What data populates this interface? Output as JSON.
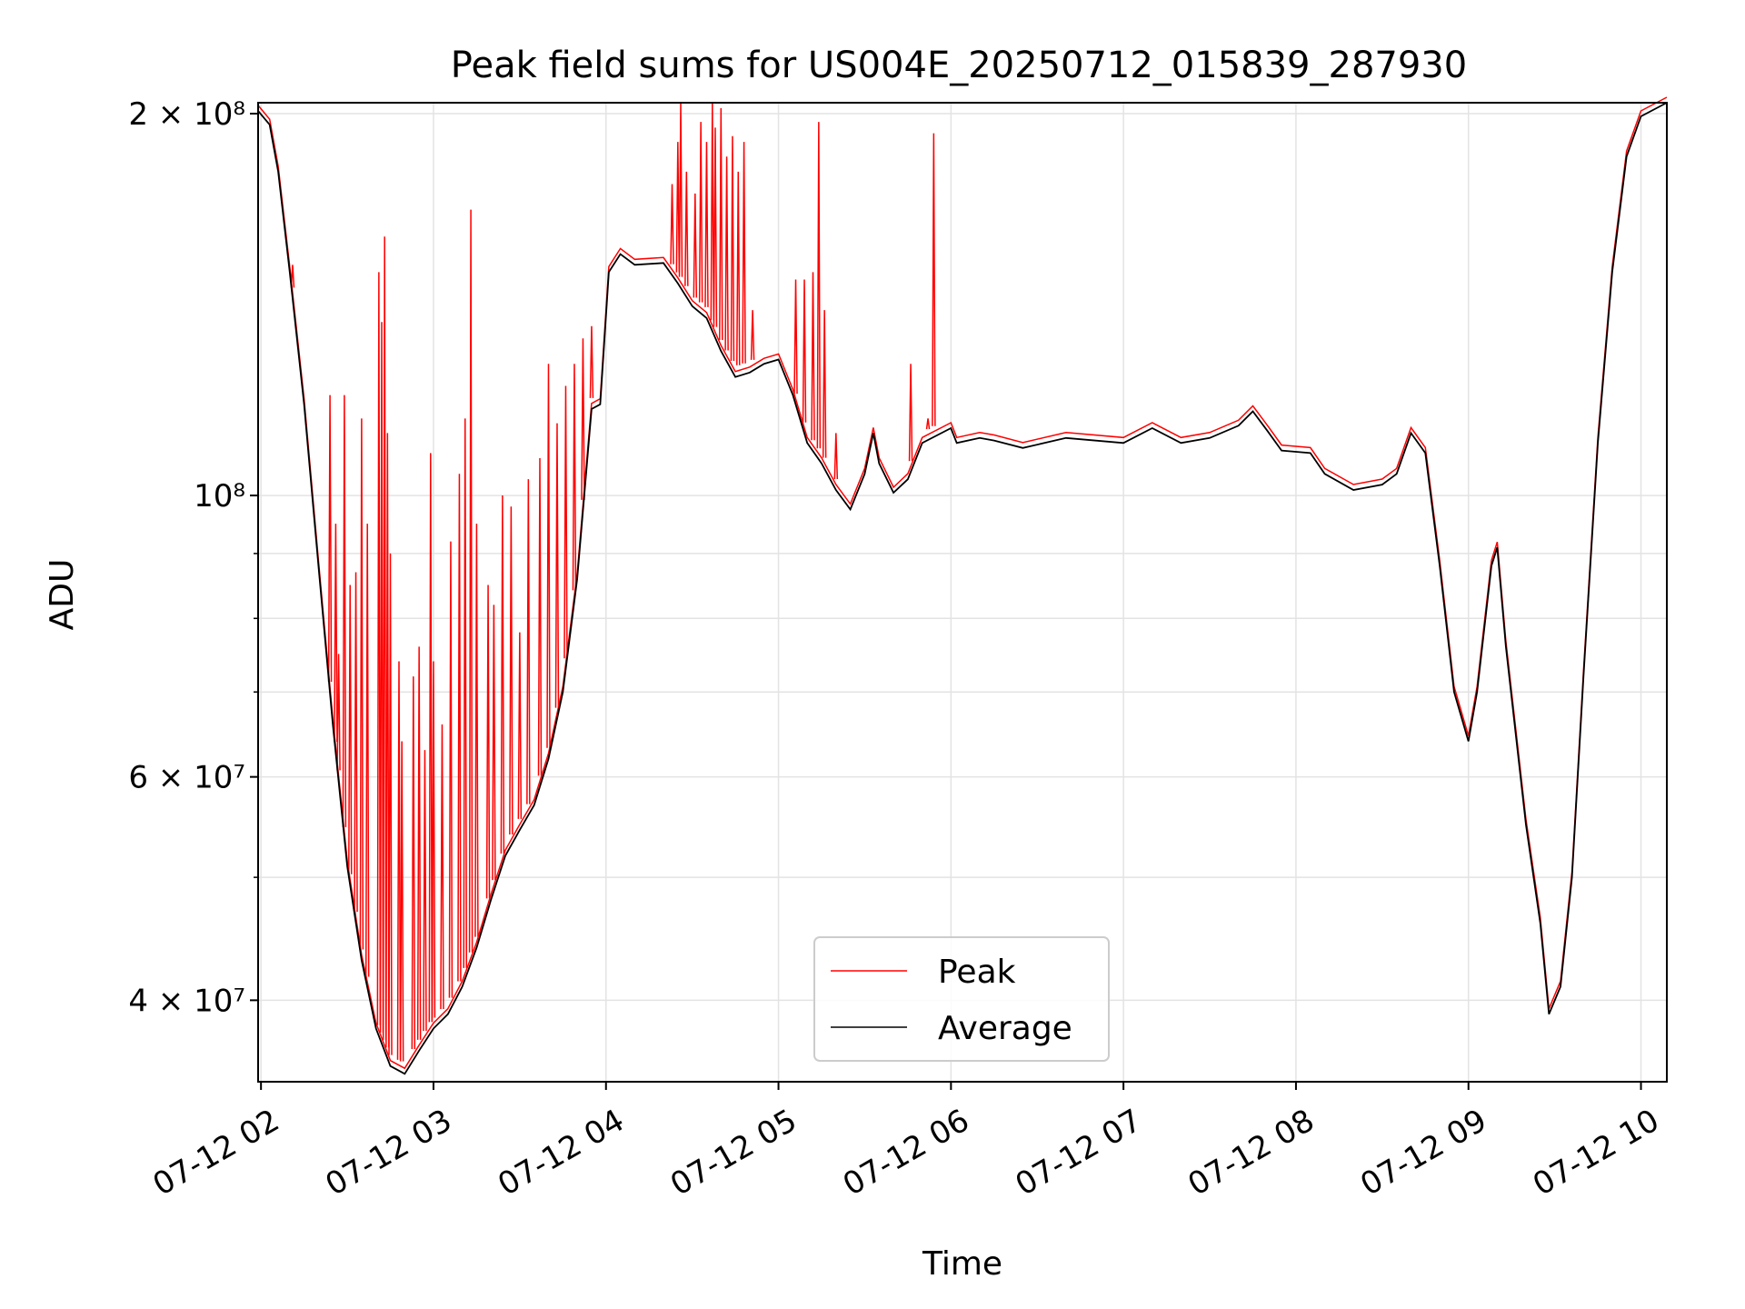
{
  "chart_data": {
    "type": "line",
    "title": "Peak field sums for US004E_20250712_015839_287930",
    "xlabel": "Time",
    "ylabel": "ADU",
    "y_scale": "log",
    "ylim": [
      34500000,
      204000000
    ],
    "xlim": [
      "2025-07-12 01:59",
      "2025-07-12 10:09"
    ],
    "grid": true,
    "legend_position": "lower center",
    "x_ticks": [
      {
        "t": "2025-07-12 02:00",
        "label": "07-12 02"
      },
      {
        "t": "2025-07-12 03:00",
        "label": "07-12 03"
      },
      {
        "t": "2025-07-12 04:00",
        "label": "07-12 04"
      },
      {
        "t": "2025-07-12 05:00",
        "label": "07-12 05"
      },
      {
        "t": "2025-07-12 06:00",
        "label": "07-12 06"
      },
      {
        "t": "2025-07-12 07:00",
        "label": "07-12 07"
      },
      {
        "t": "2025-07-12 08:00",
        "label": "07-12 08"
      },
      {
        "t": "2025-07-12 09:00",
        "label": "07-12 09"
      },
      {
        "t": "2025-07-12 10:00",
        "label": "07-12 10"
      }
    ],
    "y_ticks": [
      {
        "value": 40000000,
        "label": "4 × 10⁷"
      },
      {
        "value": 60000000,
        "label": "6 × 10⁷"
      },
      {
        "value": 100000000,
        "label": "10⁸"
      },
      {
        "value": 200000000,
        "label": "2 × 10⁸"
      }
    ],
    "y_minor_ticks": [
      50000000,
      70000000,
      80000000,
      90000000
    ],
    "series": [
      {
        "name": "Average",
        "color": "#000000",
        "points": [
          [
            "2025-07-12 01:59",
            201000000
          ],
          [
            "2025-07-12 02:03",
            196000000
          ],
          [
            "2025-07-12 02:06",
            180000000
          ],
          [
            "2025-07-12 02:10",
            150000000
          ],
          [
            "2025-07-12 02:15",
            118000000
          ],
          [
            "2025-07-12 02:20",
            88000000
          ],
          [
            "2025-07-12 02:25",
            66000000
          ],
          [
            "2025-07-12 02:30",
            51000000
          ],
          [
            "2025-07-12 02:35",
            43000000
          ],
          [
            "2025-07-12 02:40",
            38000000
          ],
          [
            "2025-07-12 02:45",
            35500000
          ],
          [
            "2025-07-12 02:50",
            35000000
          ],
          [
            "2025-07-12 02:55",
            36500000
          ],
          [
            "2025-07-12 03:00",
            38000000
          ],
          [
            "2025-07-12 03:05",
            39000000
          ],
          [
            "2025-07-12 03:10",
            41000000
          ],
          [
            "2025-07-12 03:15",
            44000000
          ],
          [
            "2025-07-12 03:20",
            48000000
          ],
          [
            "2025-07-12 03:25",
            52000000
          ],
          [
            "2025-07-12 03:30",
            54500000
          ],
          [
            "2025-07-12 03:35",
            57000000
          ],
          [
            "2025-07-12 03:40",
            62000000
          ],
          [
            "2025-07-12 03:45",
            70000000
          ],
          [
            "2025-07-12 03:50",
            86000000
          ],
          [
            "2025-07-12 03:55",
            117000000
          ],
          [
            "2025-07-12 03:58",
            118000000
          ],
          [
            "2025-07-12 04:01",
            150000000
          ],
          [
            "2025-07-12 04:05",
            155000000
          ],
          [
            "2025-07-12 04:10",
            152000000
          ],
          [
            "2025-07-12 04:20",
            152500000
          ],
          [
            "2025-07-12 04:25",
            147000000
          ],
          [
            "2025-07-12 04:30",
            141000000
          ],
          [
            "2025-07-12 04:35",
            138000000
          ],
          [
            "2025-07-12 04:40",
            130000000
          ],
          [
            "2025-07-12 04:45",
            124000000
          ],
          [
            "2025-07-12 04:50",
            125000000
          ],
          [
            "2025-07-12 04:55",
            127000000
          ],
          [
            "2025-07-12 05:00",
            128000000
          ],
          [
            "2025-07-12 05:05",
            120000000
          ],
          [
            "2025-07-12 05:10",
            110000000
          ],
          [
            "2025-07-12 05:15",
            106000000
          ],
          [
            "2025-07-12 05:20",
            101000000
          ],
          [
            "2025-07-12 05:25",
            97500000
          ],
          [
            "2025-07-12 05:30",
            104000000
          ],
          [
            "2025-07-12 05:33",
            112000000
          ],
          [
            "2025-07-12 05:35",
            106000000
          ],
          [
            "2025-07-12 05:40",
            100500000
          ],
          [
            "2025-07-12 05:45",
            103000000
          ],
          [
            "2025-07-12 05:50",
            110000000
          ],
          [
            "2025-07-12 06:00",
            113000000
          ],
          [
            "2025-07-12 06:02",
            110000000
          ],
          [
            "2025-07-12 06:10",
            111000000
          ],
          [
            "2025-07-12 06:15",
            110500000
          ],
          [
            "2025-07-12 06:25",
            109000000
          ],
          [
            "2025-07-12 06:40",
            111000000
          ],
          [
            "2025-07-12 07:00",
            110000000
          ],
          [
            "2025-07-12 07:10",
            113000000
          ],
          [
            "2025-07-12 07:20",
            110000000
          ],
          [
            "2025-07-12 07:30",
            111000000
          ],
          [
            "2025-07-12 07:40",
            113500000
          ],
          [
            "2025-07-12 07:45",
            116500000
          ],
          [
            "2025-07-12 07:50",
            112500000
          ],
          [
            "2025-07-12 07:55",
            108500000
          ],
          [
            "2025-07-12 08:05",
            108000000
          ],
          [
            "2025-07-12 08:10",
            104000000
          ],
          [
            "2025-07-12 08:20",
            101000000
          ],
          [
            "2025-07-12 08:30",
            102000000
          ],
          [
            "2025-07-12 08:35",
            104000000
          ],
          [
            "2025-07-12 08:40",
            112000000
          ],
          [
            "2025-07-12 08:45",
            108000000
          ],
          [
            "2025-07-12 08:50",
            88000000
          ],
          [
            "2025-07-12 08:55",
            70000000
          ],
          [
            "2025-07-12 09:00",
            64000000
          ],
          [
            "2025-07-12 09:03",
            70000000
          ],
          [
            "2025-07-12 09:08",
            88000000
          ],
          [
            "2025-07-12 09:10",
            91000000
          ],
          [
            "2025-07-12 09:13",
            76000000
          ],
          [
            "2025-07-12 09:20",
            55000000
          ],
          [
            "2025-07-12 09:25",
            46000000
          ],
          [
            "2025-07-12 09:28",
            39000000
          ],
          [
            "2025-07-12 09:32",
            41000000
          ],
          [
            "2025-07-12 09:36",
            50000000
          ],
          [
            "2025-07-12 09:40",
            72000000
          ],
          [
            "2025-07-12 09:45",
            110000000
          ],
          [
            "2025-07-12 09:50",
            150000000
          ],
          [
            "2025-07-12 09:55",
            185000000
          ],
          [
            "2025-07-12 10:00",
            199000000
          ],
          [
            "2025-07-12 10:09",
            204000000
          ]
        ]
      },
      {
        "name": "Peak",
        "color": "#ff0000",
        "spikes": [
          [
            "2025-07-12 02:11",
            152000000
          ],
          [
            "2025-07-12 02:24",
            120000000
          ],
          [
            "2025-07-12 02:26",
            95000000
          ],
          [
            "2025-07-12 02:27",
            75000000
          ],
          [
            "2025-07-12 02:29",
            120000000
          ],
          [
            "2025-07-12 02:31",
            85000000
          ],
          [
            "2025-07-12 02:33",
            87000000
          ],
          [
            "2025-07-12 02:35",
            115000000
          ],
          [
            "2025-07-12 02:37",
            95000000
          ],
          [
            "2025-07-12 02:41",
            150000000
          ],
          [
            "2025-07-12 02:42",
            137000000
          ],
          [
            "2025-07-12 02:43",
            160000000
          ],
          [
            "2025-07-12 02:44",
            112000000
          ],
          [
            "2025-07-12 02:45",
            90000000
          ],
          [
            "2025-07-12 02:48",
            74000000
          ],
          [
            "2025-07-12 02:49",
            64000000
          ],
          [
            "2025-07-12 02:53",
            72000000
          ],
          [
            "2025-07-12 02:55",
            76000000
          ],
          [
            "2025-07-12 02:57",
            63000000
          ],
          [
            "2025-07-12 02:59",
            108000000
          ],
          [
            "2025-07-12 03:00",
            74000000
          ],
          [
            "2025-07-12 03:03",
            66000000
          ],
          [
            "2025-07-12 03:06",
            92000000
          ],
          [
            "2025-07-12 03:09",
            104000000
          ],
          [
            "2025-07-12 03:11",
            115000000
          ],
          [
            "2025-07-12 03:13",
            168000000
          ],
          [
            "2025-07-12 03:15",
            95000000
          ],
          [
            "2025-07-12 03:19",
            85000000
          ],
          [
            "2025-07-12 03:21",
            82000000
          ],
          [
            "2025-07-12 03:24",
            100000000
          ],
          [
            "2025-07-12 03:27",
            98000000
          ],
          [
            "2025-07-12 03:30",
            78000000
          ],
          [
            "2025-07-12 03:33",
            103000000
          ],
          [
            "2025-07-12 03:37",
            107000000
          ],
          [
            "2025-07-12 03:40",
            127000000
          ],
          [
            "2025-07-12 03:43",
            114000000
          ],
          [
            "2025-07-12 03:46",
            122000000
          ],
          [
            "2025-07-12 03:49",
            127000000
          ],
          [
            "2025-07-12 03:52",
            133000000
          ],
          [
            "2025-07-12 03:55",
            136000000
          ],
          [
            "2025-07-12 04:23",
            176000000
          ],
          [
            "2025-07-12 04:25",
            190000000
          ],
          [
            "2025-07-12 04:26",
            204000000
          ],
          [
            "2025-07-12 04:28",
            180000000
          ],
          [
            "2025-07-12 04:31",
            173000000
          ],
          [
            "2025-07-12 04:33",
            197000000
          ],
          [
            "2025-07-12 04:35",
            190000000
          ],
          [
            "2025-07-12 04:37",
            204000000
          ],
          [
            "2025-07-12 04:38",
            195000000
          ],
          [
            "2025-07-12 04:40",
            202000000
          ],
          [
            "2025-07-12 04:42",
            185000000
          ],
          [
            "2025-07-12 04:44",
            192000000
          ],
          [
            "2025-07-12 04:46",
            180000000
          ],
          [
            "2025-07-12 04:48",
            190000000
          ],
          [
            "2025-07-12 04:51",
            140000000
          ],
          [
            "2025-07-12 05:06",
            148000000
          ],
          [
            "2025-07-12 05:09",
            148000000
          ],
          [
            "2025-07-12 05:12",
            150000000
          ],
          [
            "2025-07-12 05:14",
            197000000
          ],
          [
            "2025-07-12 05:16",
            140000000
          ],
          [
            "2025-07-12 05:20",
            112000000
          ],
          [
            "2025-07-12 05:46",
            127000000
          ],
          [
            "2025-07-12 05:52",
            115000000
          ],
          [
            "2025-07-12 05:54",
            193000000
          ]
        ]
      }
    ],
    "legend": [
      {
        "label": "Peak",
        "color": "#ff0000"
      },
      {
        "label": "Average",
        "color": "#000000"
      }
    ]
  }
}
